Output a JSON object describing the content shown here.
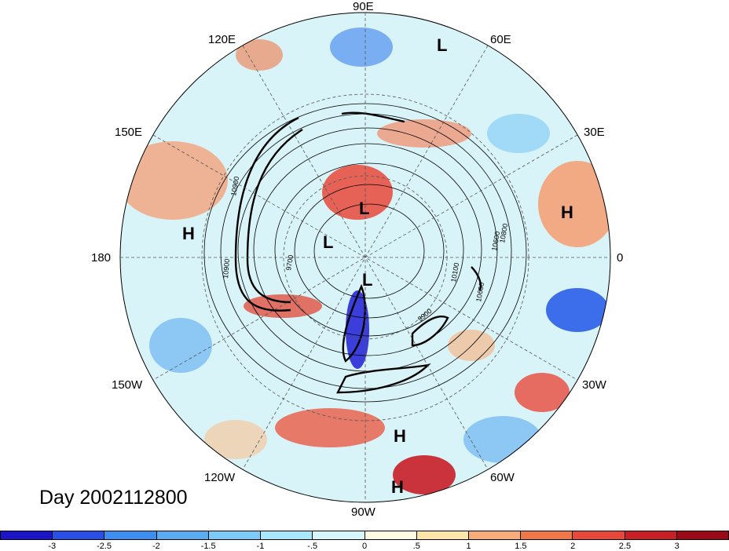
{
  "title": "Day 2002112800",
  "longitude_labels": {
    "lon_90e": "90E",
    "lon_120e": "120E",
    "lon_60e": "60E",
    "lon_150e": "150E",
    "lon_30e": "30E",
    "lon_180": "180",
    "lon_0": "0",
    "lon_150w": "150W",
    "lon_30w": "30W",
    "lon_120w": "120W",
    "lon_60w": "60W",
    "lon_90w": "90W"
  },
  "pressure_centers": [
    {
      "label": "L"
    },
    {
      "label": "L"
    },
    {
      "label": "L"
    },
    {
      "label": "L"
    },
    {
      "label": "H"
    },
    {
      "label": "H"
    },
    {
      "label": "H"
    },
    {
      "label": "H"
    }
  ],
  "contour_labels": [
    "10900",
    "10900",
    "9700",
    "10600",
    "10800",
    "10100",
    "10600",
    "9900"
  ],
  "colorbar": {
    "colors": [
      "#1c14c8",
      "#2a4fe6",
      "#3c8ff0",
      "#5aacf2",
      "#7ccaf8",
      "#a8e8fc",
      "#d6f6fc",
      "#fffbe0",
      "#fde6a8",
      "#f8ad78",
      "#f07848",
      "#e8483a",
      "#c81e26",
      "#9a0a16"
    ],
    "tick_labels": [
      "-3",
      "-2.5",
      "-2",
      "-1.5",
      "-1",
      "-.5",
      "0",
      ".5",
      "1",
      "1.5",
      "2",
      "2.5",
      "3"
    ]
  }
}
